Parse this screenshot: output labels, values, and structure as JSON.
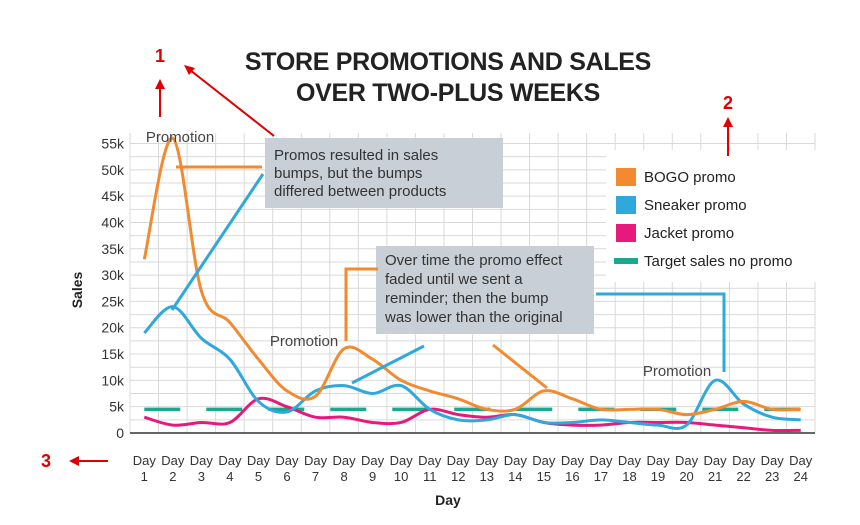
{
  "chart_data": {
    "type": "line",
    "title_lines": [
      "STORE PROMOTIONS AND SALES",
      "OVER TWO-PLUS WEEKS"
    ],
    "xlabel": "Day",
    "ylabel": "Sales",
    "ylim": [
      0,
      57000
    ],
    "yticks": [
      0,
      5000,
      10000,
      15000,
      20000,
      25000,
      30000,
      35000,
      40000,
      45000,
      50000,
      55000
    ],
    "ytick_labels": [
      "0",
      "5k",
      "10k",
      "15k",
      "20k",
      "25k",
      "30k",
      "35k",
      "40k",
      "45k",
      "50k",
      "55k"
    ],
    "categories": [
      1,
      2,
      3,
      4,
      5,
      6,
      7,
      8,
      9,
      10,
      11,
      12,
      13,
      14,
      15,
      16,
      17,
      18,
      19,
      20,
      21,
      22,
      23,
      24
    ],
    "x_prefix": "Day",
    "grid": true,
    "legend_position": "top-right",
    "series": [
      {
        "name": "BOGO promo",
        "color": "#f28a30",
        "style": "solid",
        "values": [
          33000,
          56000,
          27000,
          21000,
          14000,
          8000,
          7000,
          16000,
          14000,
          10000,
          8000,
          6500,
          4500,
          4500,
          8000,
          6500,
          4500,
          4500,
          4500,
          3500,
          4500,
          6000,
          4500,
          4500
        ]
      },
      {
        "name": "Sneaker promo",
        "color": "#2fa8dc",
        "style": "solid",
        "values": [
          19000,
          24000,
          18000,
          14000,
          6000,
          4000,
          8000,
          9000,
          7500,
          9000,
          4500,
          2500,
          2500,
          3500,
          2000,
          2000,
          2500,
          2000,
          1500,
          1500,
          10000,
          5500,
          3000,
          2500
        ]
      },
      {
        "name": "Jacket promo",
        "color": "#e8197c",
        "style": "solid",
        "values": [
          3000,
          1500,
          2000,
          2000,
          6500,
          5000,
          3000,
          3000,
          2000,
          2000,
          4500,
          3500,
          3000,
          3500,
          2000,
          1500,
          1500,
          2000,
          2000,
          2000,
          1500,
          1000,
          500,
          500
        ]
      },
      {
        "name": "Target sales no promo",
        "color": "#1aa890",
        "style": "dashed",
        "values": [
          4500,
          4500,
          4500,
          4500,
          4500,
          4500,
          4500,
          4500,
          4500,
          4500,
          4500,
          4500,
          4500,
          4500,
          4500,
          4500,
          4500,
          4500,
          4500,
          4500,
          4500,
          4500,
          4500,
          4500
        ]
      }
    ],
    "annotations": {
      "promotion_label": "Promotion",
      "box1": [
        "Promos resulted in sales",
        "bumps, but the bumps",
        "differed between products"
      ],
      "box2": [
        "Over time the promo effect",
        "faded until we sent a",
        "reminder; then the bump",
        "was lower than the original"
      ]
    },
    "markers": [
      "1",
      "2",
      "3"
    ]
  }
}
